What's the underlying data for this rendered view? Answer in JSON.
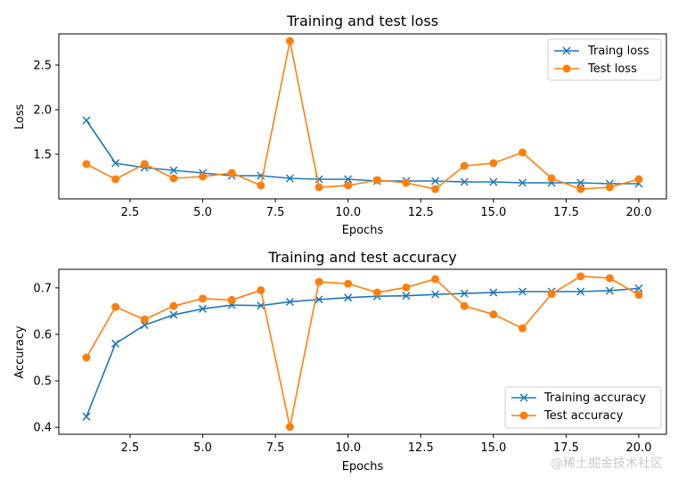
{
  "chart_data": [
    {
      "type": "line",
      "title": "Training and test loss",
      "xlabel": "Epochs",
      "ylabel": "Loss",
      "xlim": [
        0.05,
        20.95
      ],
      "ylim": [
        1.0,
        2.85
      ],
      "xticks": [
        2.5,
        5.0,
        7.5,
        10.0,
        12.5,
        15.0,
        17.5,
        20.0
      ],
      "xtick_labels": [
        "2.5",
        "5.0",
        "7.5",
        "10.0",
        "12.5",
        "15.0",
        "17.5",
        "20.0"
      ],
      "yticks": [
        1.5,
        2.0,
        2.5
      ],
      "ytick_labels": [
        "1.5",
        "2.0",
        "2.5"
      ],
      "legend_position": "top-right",
      "x": [
        1,
        2,
        3,
        4,
        5,
        6,
        7,
        8,
        9,
        10,
        11,
        12,
        13,
        14,
        15,
        16,
        17,
        18,
        19,
        20
      ],
      "series": [
        {
          "name": "Traing loss",
          "color": "#1f77b4",
          "marker": "x",
          "values": [
            1.88,
            1.4,
            1.35,
            1.32,
            1.29,
            1.26,
            1.26,
            1.23,
            1.22,
            1.22,
            1.2,
            1.2,
            1.2,
            1.19,
            1.19,
            1.18,
            1.18,
            1.18,
            1.17,
            1.17
          ]
        },
        {
          "name": "Test loss",
          "color": "#ff7f0e",
          "marker": "o",
          "values": [
            1.39,
            1.22,
            1.39,
            1.23,
            1.25,
            1.29,
            1.15,
            2.77,
            1.13,
            1.15,
            1.21,
            1.18,
            1.11,
            1.37,
            1.4,
            1.52,
            1.23,
            1.11,
            1.13,
            1.22
          ]
        }
      ]
    },
    {
      "type": "line",
      "title": "Training and test accuracy",
      "xlabel": "Epochs",
      "ylabel": "Accuracy",
      "xlim": [
        0.05,
        20.95
      ],
      "ylim": [
        0.385,
        0.74
      ],
      "xticks": [
        2.5,
        5.0,
        7.5,
        10.0,
        12.5,
        15.0,
        17.5,
        20.0
      ],
      "xtick_labels": [
        "2.5",
        "5.0",
        "7.5",
        "10.0",
        "12.5",
        "15.0",
        "17.5",
        "20.0"
      ],
      "yticks": [
        0.4,
        0.5,
        0.6,
        0.7
      ],
      "ytick_labels": [
        "0.4",
        "0.5",
        "0.6",
        "0.7"
      ],
      "legend_position": "bottom-right",
      "x": [
        1,
        2,
        3,
        4,
        5,
        6,
        7,
        8,
        9,
        10,
        11,
        12,
        13,
        14,
        15,
        16,
        17,
        18,
        19,
        20
      ],
      "series": [
        {
          "name": "Training accuracy",
          "color": "#1f77b4",
          "marker": "x",
          "values": [
            0.423,
            0.58,
            0.62,
            0.642,
            0.655,
            0.663,
            0.662,
            0.67,
            0.675,
            0.679,
            0.682,
            0.683,
            0.686,
            0.688,
            0.69,
            0.692,
            0.692,
            0.692,
            0.694,
            0.699
          ]
        },
        {
          "name": "Test accuracy",
          "color": "#ff7f0e",
          "marker": "o",
          "values": [
            0.55,
            0.659,
            0.632,
            0.661,
            0.677,
            0.674,
            0.695,
            0.401,
            0.713,
            0.709,
            0.69,
            0.701,
            0.719,
            0.661,
            0.643,
            0.613,
            0.687,
            0.725,
            0.721,
            0.685
          ]
        }
      ]
    }
  ],
  "watermark": "@稀土掘金技术社区"
}
